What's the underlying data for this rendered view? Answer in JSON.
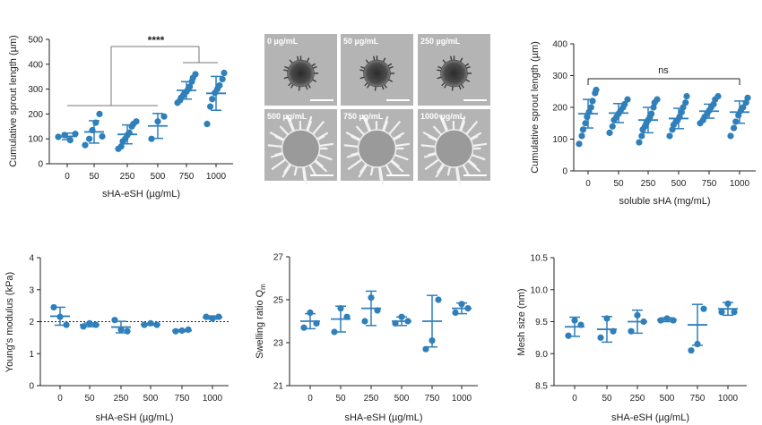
{
  "figure": {
    "accent_color": "#2f7fba",
    "axis_color": "#222222",
    "image_panel_bg": "#b4b4b4"
  },
  "chart_data": [
    {
      "id": "A",
      "type": "scatter",
      "title": "",
      "xlabel": "sHA-eSH (µg/mL)",
      "ylabel": "Cumulative sprout length (µm)",
      "categories": [
        "0",
        "50",
        "250",
        "500",
        "750",
        "1000"
      ],
      "ylim": [
        0,
        500
      ],
      "yticks": [
        0,
        100,
        200,
        300,
        400,
        500
      ],
      "points": [
        [
          108,
          115,
          95,
          120
        ],
        [
          75,
          100,
          135,
          165,
          200,
          110
        ],
        [
          60,
          70,
          90,
          100,
          115,
          125,
          150,
          160,
          170
        ],
        [
          100,
          170,
          190
        ],
        [
          245,
          255,
          265,
          275,
          285,
          290,
          300,
          310,
          330,
          345,
          360
        ],
        [
          160,
          230,
          260,
          285,
          300,
          315,
          340,
          365
        ]
      ],
      "mean": [
        110,
        128,
        118,
        152,
        295,
        283
      ],
      "sd": [
        13,
        45,
        38,
        50,
        35,
        68
      ],
      "annotations": [
        {
          "text": "****",
          "bracket": "0–500 vs 750–1000"
        }
      ]
    },
    {
      "id": "B",
      "type": "image_grid",
      "labels": [
        "0 µg/mL",
        "50 µg/mL",
        "250 µg/mL",
        "500 µg/mL",
        "750 µg/mL",
        "1000 µg/mL"
      ]
    },
    {
      "id": "C",
      "type": "scatter",
      "title": "",
      "xlabel": "soluble sHA (mg/mL)",
      "ylabel": "Cumulative sprout length (µm)",
      "categories": [
        "0",
        "50",
        "250",
        "500",
        "750",
        "1000"
      ],
      "ylim": [
        0,
        400
      ],
      "yticks": [
        0,
        100,
        200,
        300,
        400
      ],
      "points": [
        [
          85,
          110,
          130,
          150,
          170,
          185,
          200,
          220,
          245,
          255
        ],
        [
          120,
          140,
          160,
          170,
          180,
          190,
          200,
          210,
          225
        ],
        [
          90,
          110,
          130,
          140,
          150,
          160,
          170,
          180,
          200,
          215,
          225
        ],
        [
          110,
          130,
          145,
          155,
          160,
          170,
          185,
          200,
          215,
          235
        ],
        [
          150,
          160,
          170,
          180,
          190,
          200,
          210,
          225,
          235
        ],
        [
          110,
          135,
          155,
          175,
          190,
          200,
          215,
          230
        ]
      ],
      "mean": [
        180,
        182,
        160,
        165,
        188,
        185
      ],
      "sd": [
        45,
        30,
        40,
        32,
        22,
        35
      ],
      "annotations": [
        {
          "text": "ns",
          "bracket": "0–1000"
        }
      ]
    },
    {
      "id": "D",
      "type": "scatter",
      "title": "",
      "xlabel": "sHA-eSH (µg/mL)",
      "ylabel": "Young's modulus (kPa)",
      "categories": [
        "0",
        "50",
        "250",
        "500",
        "750",
        "1000"
      ],
      "ylim": [
        0,
        4
      ],
      "yticks": [
        0,
        1,
        2,
        3,
        4
      ],
      "reference_line": 2.0,
      "points": [
        [
          2.45,
          2.15,
          1.9
        ],
        [
          1.85,
          1.95,
          1.9
        ],
        [
          2.05,
          1.75,
          1.7
        ],
        [
          1.9,
          1.95,
          1.9
        ],
        [
          1.7,
          1.72,
          1.75
        ],
        [
          2.15,
          2.1,
          2.15
        ]
      ],
      "mean": [
        2.17,
        1.9,
        1.83,
        1.92,
        1.72,
        2.13
      ],
      "sd": [
        0.28,
        0.06,
        0.18,
        0.03,
        0.03,
        0.05
      ]
    },
    {
      "id": "E",
      "type": "scatter",
      "title": "",
      "xlabel": "sHA-eSH (µg/mL)",
      "ylabel": "Swelling ratio Q",
      "ylabel_sub": "m",
      "categories": [
        "0",
        "50",
        "250",
        "500",
        "750",
        "1000"
      ],
      "ylim": [
        21,
        27
      ],
      "yticks": [
        21,
        23,
        25,
        27
      ],
      "points": [
        [
          23.7,
          24.4,
          23.9
        ],
        [
          23.5,
          24.6,
          24.2
        ],
        [
          24.0,
          25.1,
          24.5
        ],
        [
          23.9,
          24.2,
          24.0
        ],
        [
          22.7,
          23.1,
          25.0
        ],
        [
          24.4,
          24.8,
          24.6
        ]
      ],
      "mean": [
        24.0,
        24.1,
        24.6,
        24.0,
        24.0,
        24.6
      ],
      "sd": [
        0.35,
        0.6,
        0.8,
        0.2,
        1.2,
        0.25
      ]
    },
    {
      "id": "F",
      "type": "scatter",
      "title": "",
      "xlabel": "sHA-eSH (µg/mL)",
      "ylabel": "Mesh size (nm)",
      "categories": [
        "0",
        "50",
        "250",
        "500",
        "750",
        "1000"
      ],
      "ylim": [
        8.5,
        10.5
      ],
      "yticks": [
        8.5,
        9.0,
        9.5,
        10.0,
        10.5
      ],
      "points": [
        [
          9.28,
          9.52,
          9.45
        ],
        [
          9.25,
          9.55,
          9.35
        ],
        [
          9.35,
          9.6,
          9.5
        ],
        [
          9.52,
          9.55,
          9.52
        ],
        [
          9.05,
          9.15,
          9.7
        ],
        [
          9.65,
          9.78,
          9.65
        ]
      ],
      "mean": [
        9.42,
        9.38,
        9.5,
        9.53,
        9.45,
        9.7
      ],
      "sd": [
        0.15,
        0.2,
        0.18,
        0.03,
        0.32,
        0.1
      ]
    }
  ]
}
